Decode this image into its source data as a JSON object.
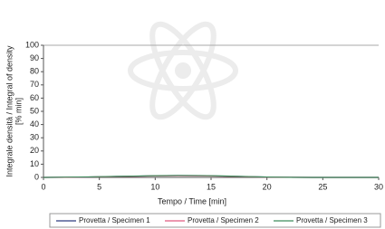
{
  "chart_data": {
    "type": "line",
    "y_label": [
      "Integrale densità / Integral of density",
      "[% min]"
    ],
    "x_label": "Tempo / Time [min]",
    "x": [
      0,
      2,
      4,
      6,
      8,
      10,
      12,
      14,
      16,
      18,
      20,
      22,
      24,
      26,
      28,
      30
    ],
    "series": [
      {
        "name": "Provetta / Specimen 1",
        "color": "#2f3c80",
        "values": [
          0,
          0.1,
          0.3,
          0.6,
          0.9,
          1.2,
          1.4,
          1.3,
          1.0,
          0.6,
          0.3,
          0.1,
          0,
          0,
          0,
          0
        ]
      },
      {
        "name": "Provetta / Specimen 2",
        "color": "#e05a80",
        "values": [
          0,
          0.1,
          0.3,
          0.5,
          0.8,
          1.1,
          1.3,
          1.2,
          0.9,
          0.5,
          0.2,
          0.1,
          0,
          0,
          0,
          0
        ]
      },
      {
        "name": "Provetta / Specimen 3",
        "color": "#3f8c5c",
        "values": [
          0,
          0.2,
          0.4,
          0.7,
          1.0,
          1.3,
          1.5,
          1.4,
          1.1,
          0.7,
          0.3,
          0.1,
          0,
          0,
          0,
          0
        ]
      }
    ],
    "xlim": [
      0,
      30
    ],
    "xticks": [
      0,
      5,
      10,
      15,
      20,
      25,
      30
    ],
    "ylim": [
      0,
      100
    ],
    "yticks": [
      0,
      10,
      20,
      30,
      40,
      50,
      60,
      70,
      80,
      90,
      100
    ],
    "legend": "bottom"
  }
}
